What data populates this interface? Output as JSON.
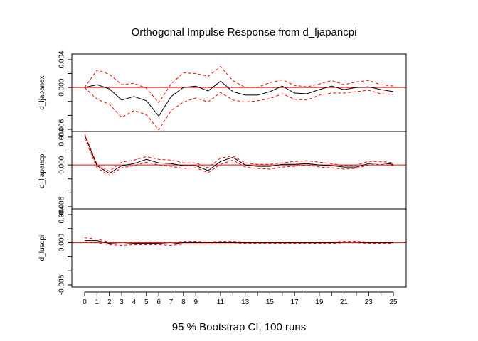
{
  "chart_data": {
    "type": "line",
    "title": "Orthogonal Impulse Response from d_ljapancpi",
    "xlabel": "95 % Bootstrap CI,  100 runs",
    "x": [
      0,
      1,
      2,
      3,
      4,
      5,
      6,
      7,
      8,
      9,
      10,
      11,
      12,
      13,
      14,
      15,
      16,
      17,
      18,
      19,
      20,
      21,
      22,
      23,
      24,
      25
    ],
    "x_tick_labels": [
      "0",
      "1",
      "2",
      "3",
      "4",
      "5",
      "6",
      "7",
      "8",
      "9",
      "11",
      "13",
      "15",
      "17",
      "19",
      "21",
      "23",
      "25"
    ],
    "x_ticks_all": [
      0,
      1,
      2,
      3,
      4,
      5,
      6,
      7,
      8,
      9,
      10,
      11,
      12,
      13,
      14,
      15,
      16,
      17,
      18,
      19,
      20,
      21,
      22,
      23,
      24,
      25
    ],
    "y_tick_labels": [
      "-0.006",
      "0.000",
      "0.004"
    ],
    "ylim": [
      -0.006,
      0.0045
    ],
    "colors": {
      "response": "#000000",
      "ci": "#ff0000",
      "zero": "#ff0000"
    },
    "panels": [
      {
        "ylabel": "d_ljapanex",
        "series": [
          {
            "role": "response",
            "values": [
              0,
              0.0004,
              -0.0002,
              -0.0018,
              -0.0013,
              -0.0019,
              -0.0041,
              -0.0013,
              0,
              0.0002,
              -0.0005,
              0.0009,
              -0.0006,
              -0.0011,
              -0.0011,
              -0.0006,
              0.0002,
              -0.0008,
              -0.0009,
              -0.0003,
              0.0002,
              -0.0003,
              0,
              0.0001,
              -0.0003,
              -0.0006
            ]
          },
          {
            "role": "ci_upper",
            "values": [
              0,
              0.0025,
              0.0019,
              0.0004,
              0.0006,
              -0.0001,
              -0.0022,
              0.0005,
              0.0021,
              0.002,
              0.0016,
              0.003,
              0.001,
              0,
              0,
              0.0007,
              0.0011,
              0.0003,
              0.0001,
              0.0005,
              0.001,
              0.0004,
              0.0008,
              0.001,
              0.0004,
              0.0002
            ]
          },
          {
            "role": "ci_lower",
            "values": [
              0,
              -0.0017,
              -0.0024,
              -0.0043,
              -0.0033,
              -0.0039,
              -0.0061,
              -0.0033,
              -0.0021,
              -0.0015,
              -0.0021,
              -0.0007,
              -0.0018,
              -0.0021,
              -0.0019,
              -0.0016,
              -0.0009,
              -0.0017,
              -0.0018,
              -0.0011,
              -0.0008,
              -0.0008,
              -0.0006,
              -0.0004,
              -0.0009,
              -0.001
            ]
          }
        ]
      },
      {
        "ylabel": "d_ljapancpi",
        "series": [
          {
            "role": "response",
            "values": [
              0.0043,
              -0.0001,
              -0.0012,
              -0.0001,
              0.0002,
              0.0008,
              0.0003,
              0.0002,
              -0.0001,
              -0.0001,
              -0.0008,
              0.0005,
              0.0011,
              0,
              -0.0002,
              -0.0002,
              0.0001,
              0.0001,
              0.0002,
              0,
              -0.0001,
              -0.0003,
              -0.0003,
              0.0002,
              0.0003,
              0.0001
            ]
          },
          {
            "role": "ci_upper",
            "values": [
              0.0045,
              0.0001,
              -0.0009,
              0.0004,
              0.0007,
              0.0012,
              0.0008,
              0.0007,
              0.0003,
              0.0003,
              -0.0004,
              0.001,
              0.0013,
              0.0003,
              0.0001,
              0.0001,
              0.0003,
              0.0005,
              0.0006,
              0.0004,
              0.0002,
              -0.0001,
              0,
              0.0005,
              0.0005,
              0.0003
            ]
          },
          {
            "role": "ci_lower",
            "values": [
              0.0038,
              -0.0004,
              -0.0015,
              -0.0004,
              -0.0001,
              0.0004,
              0,
              -0.0002,
              -0.0005,
              -0.0004,
              -0.0011,
              0.0001,
              0.0007,
              -0.0003,
              -0.0005,
              -0.0006,
              -0.0003,
              -0.0002,
              0,
              -0.0003,
              -0.0004,
              -0.0006,
              -0.0005,
              0,
              0.0001,
              -0.0001
            ]
          }
        ]
      },
      {
        "ylabel": "d_luscpi",
        "series": [
          {
            "role": "response",
            "values": [
              0.0003,
              0.0003,
              -0.0001,
              -0.0002,
              -0.0001,
              -0.0001,
              -0.0001,
              -0.0002,
              0,
              0,
              0,
              0,
              0,
              0,
              0,
              0,
              0,
              0,
              0,
              0,
              0,
              0.0001,
              0.0001,
              0,
              0,
              0
            ]
          },
          {
            "role": "ci_upper",
            "values": [
              0.0007,
              0.0005,
              0.0001,
              0,
              0.0001,
              0.0001,
              0.0001,
              0,
              0.0002,
              0.0002,
              0.0001,
              0.0002,
              0.0002,
              0.0001,
              0.0001,
              0.0001,
              0.0001,
              0.0001,
              0.0001,
              0.0001,
              0.0001,
              0.0002,
              0.0002,
              0.0001,
              0.0001,
              0.0001
            ]
          },
          {
            "role": "ci_lower",
            "values": [
              0.0001,
              0,
              -0.0003,
              -0.0004,
              -0.0003,
              -0.0003,
              -0.0003,
              -0.0004,
              -0.0002,
              -0.0002,
              -0.0002,
              -0.0002,
              -0.0002,
              -0.0001,
              -0.0001,
              -0.0001,
              -0.0001,
              -0.0001,
              -0.0001,
              -0.0001,
              -0.0001,
              0,
              0,
              -0.0001,
              -0.0001,
              -0.0001
            ]
          }
        ]
      }
    ]
  }
}
